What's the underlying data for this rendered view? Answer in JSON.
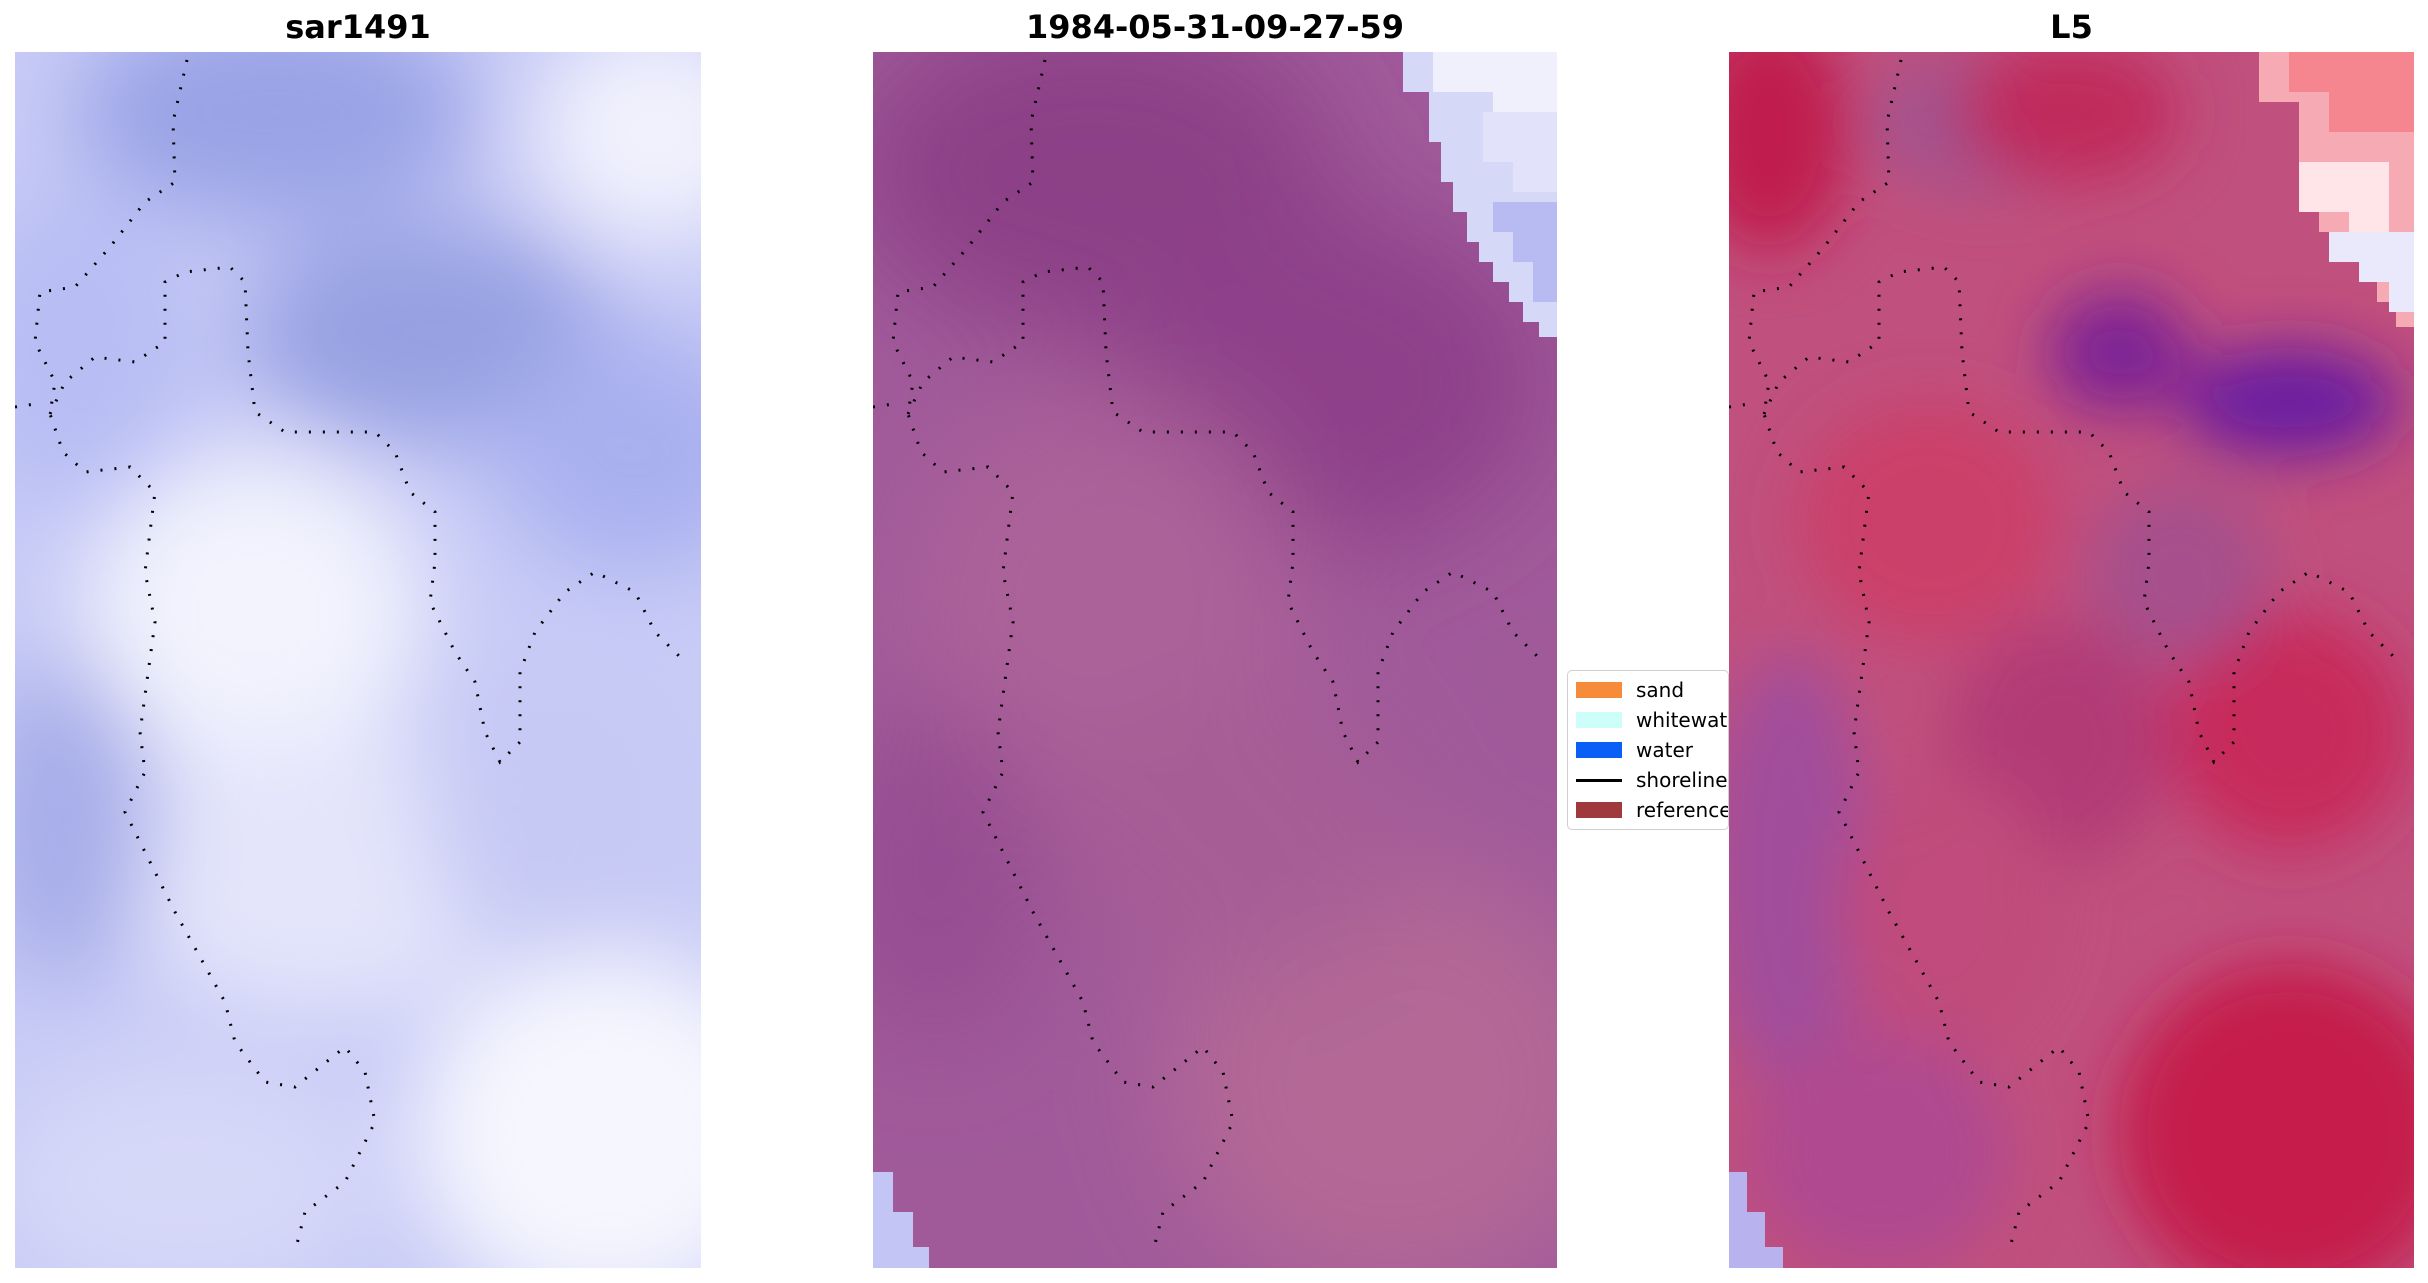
{
  "panels": [
    {
      "title": "sar1491"
    },
    {
      "title": "1984-05-31-09-27-59"
    },
    {
      "title": "L5"
    }
  ],
  "legend": {
    "items": [
      {
        "label": "sand",
        "type": "patch",
        "color": "#f68b3a"
      },
      {
        "label": "whitewater",
        "type": "patch",
        "color": "#ccfffa"
      },
      {
        "label": "water",
        "type": "patch",
        "color": "#0a5ff5"
      },
      {
        "label": "shoreline",
        "type": "line",
        "color": "#000000"
      },
      {
        "label": "reference",
        "type": "patch",
        "color": "#a0393c"
      }
    ]
  }
}
